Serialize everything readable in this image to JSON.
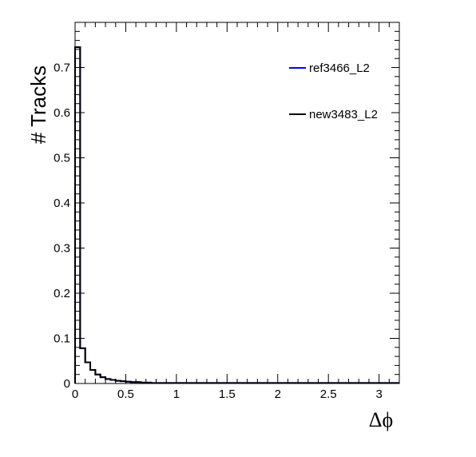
{
  "chart_data": {
    "type": "histogram",
    "title": "",
    "xlabel": "Δϕ",
    "ylabel": "# Tracks",
    "xlim": [
      0,
      3.2
    ],
    "ylim": [
      0,
      0.8
    ],
    "x_ticks": [
      "0",
      "0.5",
      "1",
      "1.5",
      "2",
      "2.5",
      "3"
    ],
    "x_tick_values": [
      0,
      0.5,
      1,
      1.5,
      2,
      2.5,
      3
    ],
    "y_ticks": [
      "0",
      "0.1",
      "0.2",
      "0.3",
      "0.4",
      "0.5",
      "0.6",
      "0.7"
    ],
    "y_tick_values": [
      0,
      0.1,
      0.2,
      0.3,
      0.4,
      0.5,
      0.6,
      0.7
    ],
    "bin_width": 0.05,
    "series": [
      {
        "name": "ref3466_L2",
        "color": "#0000ff",
        "values": [
          0.745,
          0.078,
          0.047,
          0.03,
          0.02,
          0.014,
          0.01,
          0.008,
          0.006,
          0.005,
          0.004,
          0.003,
          0.003,
          0.002,
          0.002,
          0.001,
          0.001,
          0.001,
          0.001,
          0.001,
          0.001,
          0.001,
          0.001,
          0.001,
          0.001,
          0.001,
          0.001,
          0.001,
          0.001,
          0.001,
          0.001,
          0.001,
          0.001,
          0.001,
          0.001,
          0.001,
          0.001,
          0.001,
          0.001,
          0.001,
          0.001,
          0.001,
          0.001,
          0.001,
          0.001,
          0.001,
          0.001,
          0.001,
          0.001,
          0.001,
          0.001,
          0.001,
          0.001,
          0.001,
          0.001,
          0.001,
          0.001,
          0.001,
          0.001,
          0.001,
          0.001,
          0.001,
          0.001,
          0.001
        ]
      },
      {
        "name": "new3483_L2",
        "color": "#000000",
        "values": [
          0.745,
          0.078,
          0.047,
          0.03,
          0.02,
          0.014,
          0.01,
          0.008,
          0.006,
          0.005,
          0.004,
          0.003,
          0.003,
          0.002,
          0.002,
          0.001,
          0.001,
          0.001,
          0.001,
          0.001,
          0.001,
          0.001,
          0.001,
          0.001,
          0.001,
          0.001,
          0.001,
          0.001,
          0.001,
          0.001,
          0.001,
          0.001,
          0.001,
          0.001,
          0.001,
          0.001,
          0.001,
          0.001,
          0.001,
          0.001,
          0.001,
          0.001,
          0.001,
          0.001,
          0.001,
          0.001,
          0.001,
          0.001,
          0.001,
          0.001,
          0.001,
          0.001,
          0.001,
          0.001,
          0.001,
          0.001,
          0.001,
          0.001,
          0.001,
          0.001,
          0.001,
          0.001,
          0.001,
          0.001
        ]
      }
    ],
    "legend": {
      "position": "top-right",
      "entries": [
        "ref3466_L2",
        "new3483_L2"
      ]
    },
    "grid": false
  }
}
